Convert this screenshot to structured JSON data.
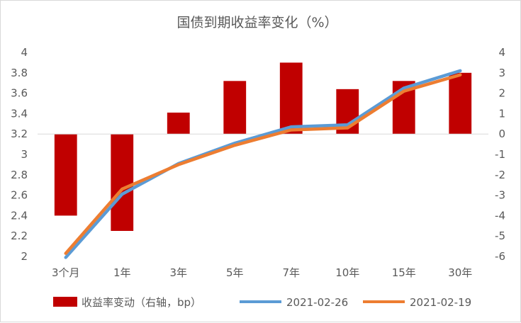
{
  "chart_data": {
    "type": "bar+line",
    "title": "国债到期收益率变化（%）",
    "categories": [
      "3个月",
      "1年",
      "3年",
      "5年",
      "7年",
      "10年",
      "15年",
      "30年"
    ],
    "left_axis": {
      "ticks": [
        "2",
        "2.2",
        "2.4",
        "2.6",
        "2.8",
        "3",
        "3.2",
        "3.4",
        "3.6",
        "3.8",
        "4"
      ],
      "ylim": [
        2,
        4
      ]
    },
    "right_axis": {
      "ticks": [
        "-6",
        "-5",
        "-4",
        "-3",
        "-2",
        "-1",
        "0",
        "1",
        "2",
        "3",
        "4"
      ],
      "ylim": [
        -6,
        4
      ]
    },
    "series": [
      {
        "name": "收益率变动（右轴，bp）",
        "type": "bar",
        "axis": "right",
        "color": "#c00000",
        "values": [
          -4.0,
          -4.75,
          1.05,
          2.6,
          3.5,
          2.2,
          2.6,
          3.0
        ]
      },
      {
        "name": "2021-02-26",
        "type": "line",
        "axis": "left",
        "color": "#5b9bd5",
        "values": [
          1.99,
          2.61,
          2.91,
          3.11,
          3.27,
          3.29,
          3.65,
          3.82
        ]
      },
      {
        "name": "2021-02-19",
        "type": "line",
        "axis": "left",
        "color": "#ed7d31",
        "values": [
          2.03,
          2.66,
          2.9,
          3.09,
          3.24,
          3.26,
          3.62,
          3.78
        ]
      }
    ],
    "legend_position": "bottom",
    "grid": false
  }
}
